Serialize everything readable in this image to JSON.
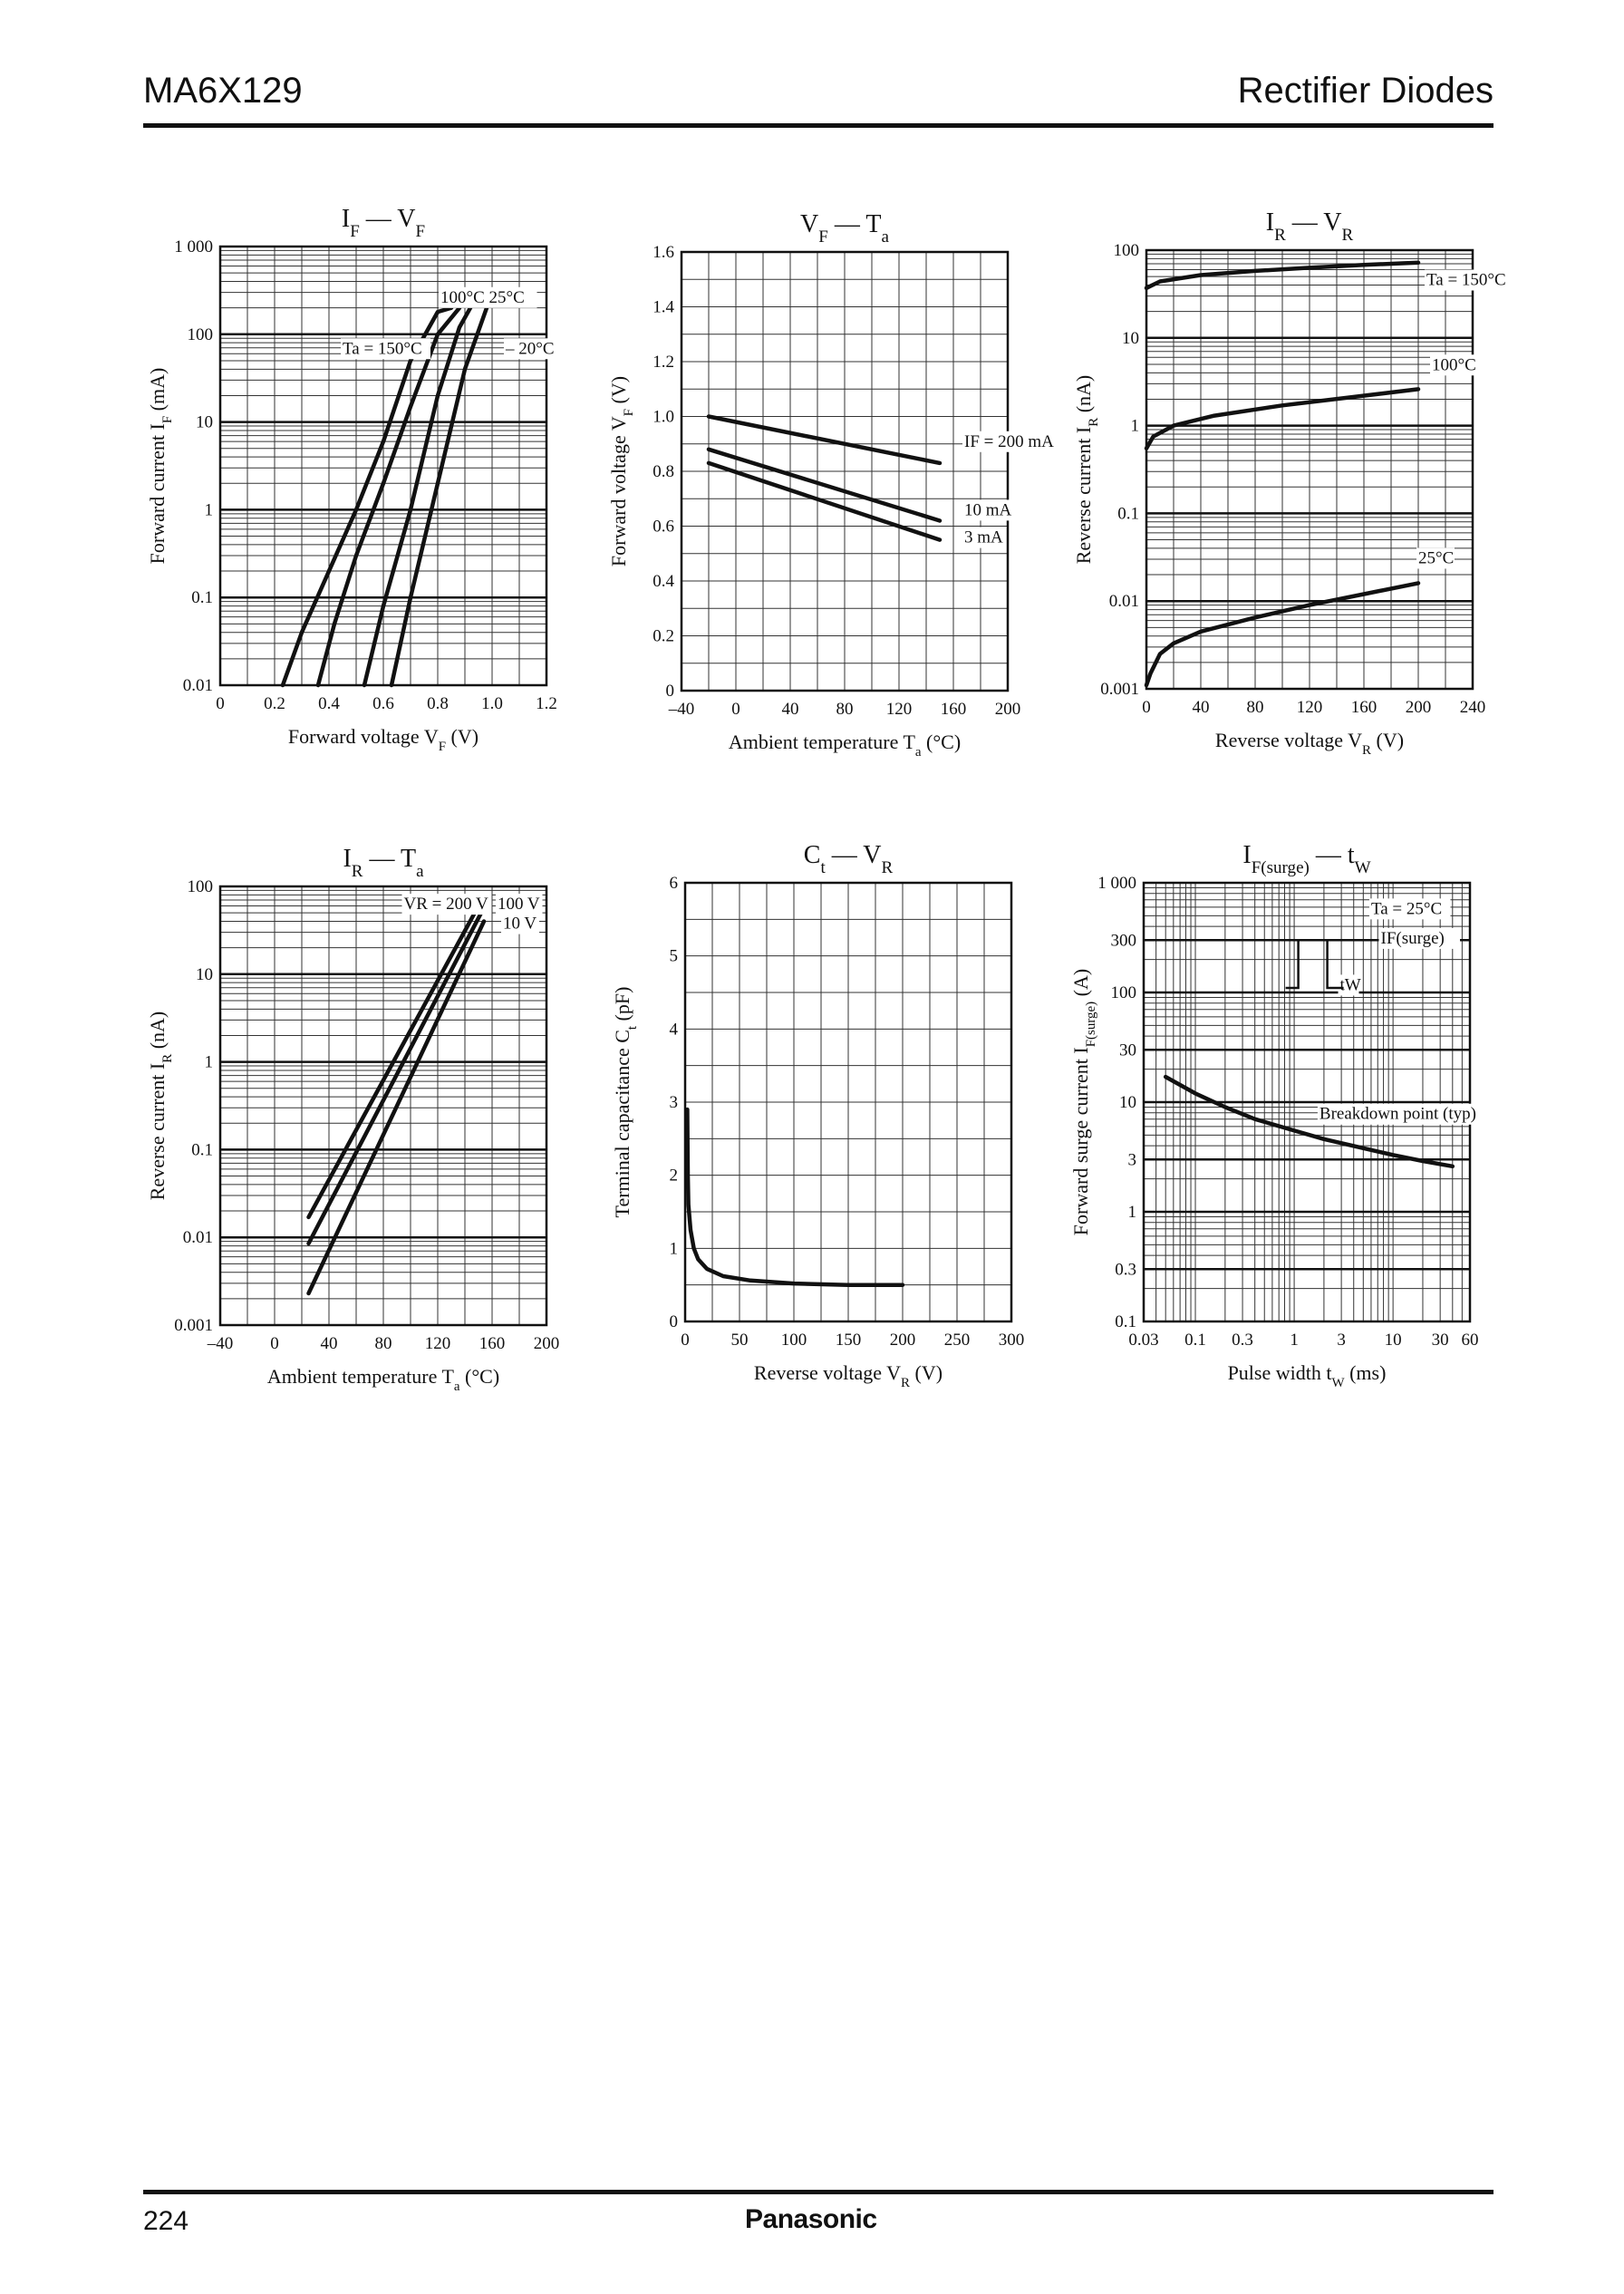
{
  "header": {
    "part_number": "MA6X129",
    "category": "Rectifier Diodes"
  },
  "footer": {
    "page_number": "224",
    "brand": "Panasonic"
  },
  "chart_data": [
    {
      "id": "if_vf",
      "type": "line",
      "title": {
        "main": "I",
        "main_sub": "F",
        "dash": " — ",
        "var": "V",
        "var_sub": "F"
      },
      "xlabel": {
        "text": "Forward voltage",
        "sym": "V",
        "sub": "F",
        "unit": "(V)"
      },
      "ylabel": {
        "text": "Forward current",
        "sym": "I",
        "sub": "F",
        "unit": "(mA)"
      },
      "xscale": "linear",
      "yscale": "log",
      "xlim": [
        0,
        1.2
      ],
      "ylim": [
        0.01,
        1000
      ],
      "xticks": [
        0,
        0.2,
        0.4,
        0.6,
        0.8,
        1.0,
        1.2
      ],
      "xticklabels": [
        "0",
        "0.2",
        "0.4",
        "0.6",
        "0.8",
        "1.0",
        "1.2"
      ],
      "yticks": [
        0.01,
        0.1,
        1,
        10,
        100,
        1000
      ],
      "yticklabels": [
        "0.01",
        "0.1",
        "1",
        "10",
        "100",
        "1 000"
      ],
      "xgrid": [
        0.1,
        0.2,
        0.3,
        0.4,
        0.5,
        0.6,
        0.7,
        0.8,
        0.9,
        1.0,
        1.1
      ],
      "ygrid": "log",
      "series": [
        {
          "points": [
            [
              0.23,
              0.01
            ],
            [
              0.3,
              0.04
            ],
            [
              0.4,
              0.2
            ],
            [
              0.5,
              1
            ],
            [
              0.6,
              6
            ],
            [
              0.7,
              50
            ],
            [
              0.8,
              180
            ],
            [
              0.85,
              200
            ]
          ]
        },
        {
          "points": [
            [
              0.36,
              0.01
            ],
            [
              0.42,
              0.05
            ],
            [
              0.5,
              0.3
            ],
            [
              0.6,
              2
            ],
            [
              0.7,
              15
            ],
            [
              0.8,
              100
            ],
            [
              0.88,
              200
            ]
          ]
        },
        {
          "points": [
            [
              0.53,
              0.01
            ],
            [
              0.6,
              0.08
            ],
            [
              0.7,
              1
            ],
            [
              0.8,
              20
            ],
            [
              0.88,
              120
            ],
            [
              0.92,
              200
            ]
          ]
        },
        {
          "points": [
            [
              0.63,
              0.01
            ],
            [
              0.7,
              0.1
            ],
            [
              0.8,
              2
            ],
            [
              0.9,
              40
            ],
            [
              0.98,
              200
            ]
          ]
        }
      ],
      "annotations": [
        {
          "text": "100°C  25°C",
          "x": 0.81,
          "y": 230
        },
        {
          "text": "Ta = 150°C",
          "x": 0.45,
          "y": 60
        },
        {
          "text": "– 20°C",
          "x": 1.05,
          "y": 60
        }
      ]
    },
    {
      "id": "vf_ta",
      "type": "line",
      "title": {
        "main": "V",
        "main_sub": "F",
        "dash": " — ",
        "var": "T",
        "var_sub": "a"
      },
      "xlabel": {
        "text": "Ambient temperature",
        "sym": "T",
        "sub": "a",
        "unit": "(°C)"
      },
      "ylabel": {
        "text": "Forward voltage",
        "sym": "V",
        "sub": "F",
        "unit": "(V)"
      },
      "xscale": "linear",
      "yscale": "linear",
      "xlim": [
        -40,
        200
      ],
      "ylim": [
        0,
        1.6
      ],
      "xticks": [
        -40,
        0,
        40,
        80,
        120,
        160,
        200
      ],
      "xticklabels": [
        "–40",
        "0",
        "40",
        "80",
        "120",
        "160",
        "200"
      ],
      "yticks": [
        0,
        0.2,
        0.4,
        0.6,
        0.8,
        1.0,
        1.2,
        1.4,
        1.6
      ],
      "yticklabels": [
        "0",
        "0.2",
        "0.4",
        "0.6",
        "0.8",
        "1.0",
        "1.2",
        "1.4",
        "1.6"
      ],
      "xgrid": [
        -20,
        0,
        20,
        40,
        60,
        80,
        100,
        120,
        140,
        160,
        180
      ],
      "ygrid": [
        0.1,
        0.2,
        0.3,
        0.4,
        0.5,
        0.6,
        0.7,
        0.8,
        0.9,
        1.0,
        1.1,
        1.2,
        1.3,
        1.4,
        1.5
      ],
      "series": [
        {
          "name": "IF = 200 mA",
          "points": [
            [
              -20,
              1.0
            ],
            [
              150,
              0.83
            ]
          ]
        },
        {
          "name": "10 mA",
          "points": [
            [
              -20,
              0.88
            ],
            [
              150,
              0.62
            ]
          ]
        },
        {
          "name": "3 mA",
          "points": [
            [
              -20,
              0.83
            ],
            [
              150,
              0.55
            ]
          ]
        }
      ],
      "annotations": [
        {
          "text": "IF = 200 mA",
          "x": 168,
          "y": 0.89
        },
        {
          "text": "10 mA",
          "x": 168,
          "y": 0.64
        },
        {
          "text": "3 mA",
          "x": 168,
          "y": 0.54
        }
      ]
    },
    {
      "id": "ir_vr",
      "type": "line",
      "title": {
        "main": "I",
        "main_sub": "R",
        "dash": " — ",
        "var": "V",
        "var_sub": "R"
      },
      "xlabel": {
        "text": "Reverse voltage",
        "sym": "V",
        "sub": "R",
        "unit": "(V)"
      },
      "ylabel": {
        "text": "Reverse current",
        "sym": "I",
        "sub": "R",
        "unit": "(nA)"
      },
      "xscale": "linear",
      "yscale": "log",
      "xlim": [
        0,
        240
      ],
      "ylim": [
        0.001,
        100
      ],
      "xticks": [
        0,
        40,
        80,
        120,
        160,
        200,
        240
      ],
      "xticklabels": [
        "0",
        "40",
        "80",
        "120",
        "160",
        "200",
        "240"
      ],
      "yticks": [
        0.001,
        0.01,
        0.1,
        1,
        10,
        100
      ],
      "yticklabels": [
        "0.001",
        "0.01",
        "0.1",
        "1",
        "10",
        "100"
      ],
      "xgrid": [
        20,
        40,
        60,
        80,
        100,
        120,
        140,
        160,
        180,
        200,
        220
      ],
      "ygrid": "log",
      "series": [
        {
          "name": "Ta = 150°C",
          "points": [
            [
              0,
              37
            ],
            [
              10,
              44
            ],
            [
              40,
              52
            ],
            [
              80,
              58
            ],
            [
              120,
              63
            ],
            [
              160,
              68
            ],
            [
              200,
              72
            ]
          ]
        },
        {
          "name": "100°C",
          "points": [
            [
              0,
              0.55
            ],
            [
              5,
              0.75
            ],
            [
              20,
              1.0
            ],
            [
              50,
              1.3
            ],
            [
              100,
              1.7
            ],
            [
              150,
              2.1
            ],
            [
              200,
              2.6
            ]
          ]
        },
        {
          "name": "25°C",
          "points": [
            [
              0,
              0.0011
            ],
            [
              3,
              0.0015
            ],
            [
              10,
              0.0025
            ],
            [
              20,
              0.0033
            ],
            [
              40,
              0.0045
            ],
            [
              80,
              0.0065
            ],
            [
              120,
              0.009
            ],
            [
              160,
              0.012
            ],
            [
              200,
              0.016
            ]
          ]
        }
      ],
      "annotations": [
        {
          "text": "Ta = 150°C",
          "x": 206,
          "y": 40
        },
        {
          "text": "100°C",
          "x": 210,
          "y": 4.3
        },
        {
          "text": "25°C",
          "x": 200,
          "y": 0.027
        }
      ]
    },
    {
      "id": "ir_ta",
      "type": "line",
      "title": {
        "main": "I",
        "main_sub": "R",
        "dash": " — ",
        "var": "T",
        "var_sub": "a"
      },
      "xlabel": {
        "text": "Ambient temperature",
        "sym": "T",
        "sub": "a",
        "unit": "(°C)"
      },
      "ylabel": {
        "text": "Reverse current",
        "sym": "I",
        "sub": "R",
        "unit": "(nA)"
      },
      "xscale": "linear",
      "yscale": "log",
      "xlim": [
        -40,
        200
      ],
      "ylim": [
        0.001,
        100
      ],
      "xticks": [
        -40,
        0,
        40,
        80,
        120,
        160,
        200
      ],
      "xticklabels": [
        "–40",
        "0",
        "40",
        "80",
        "120",
        "160",
        "200"
      ],
      "yticks": [
        0.001,
        0.01,
        0.1,
        1,
        10,
        100
      ],
      "yticklabels": [
        "0.001",
        "0.01",
        "0.1",
        "1",
        "10",
        "100"
      ],
      "xgrid": [
        -20,
        0,
        20,
        40,
        60,
        80,
        100,
        120,
        140,
        160,
        180
      ],
      "ygrid": "log",
      "series": [
        {
          "name": "VR = 200 V",
          "points": [
            [
              25,
              0.017
            ],
            [
              150,
              60
            ]
          ]
        },
        {
          "name": "100 V",
          "points": [
            [
              25,
              0.0085
            ],
            [
              152,
              50
            ]
          ]
        },
        {
          "name": "10 V",
          "points": [
            [
              25,
              0.0023
            ],
            [
              154,
              40
            ]
          ]
        }
      ],
      "annotations": [
        {
          "text": "VR = 200 V",
          "x": 95,
          "y": 55
        },
        {
          "text": "100 V",
          "x": 164,
          "y": 55
        },
        {
          "text": "10 V",
          "x": 168,
          "y": 33
        }
      ]
    },
    {
      "id": "ct_vr",
      "type": "line",
      "title": {
        "main": "C",
        "main_sub": "t",
        "dash": " — ",
        "var": "V",
        "var_sub": "R"
      },
      "xlabel": {
        "text": "Reverse voltage",
        "sym": "V",
        "sub": "R",
        "unit": "(V)"
      },
      "ylabel": {
        "text": "Terminal capacitance",
        "sym": "C",
        "sub": "t",
        "unit": "(pF)"
      },
      "xscale": "linear",
      "yscale": "linear",
      "xlim": [
        0,
        300
      ],
      "ylim": [
        0,
        6
      ],
      "xticks": [
        0,
        50,
        100,
        150,
        200,
        250,
        300
      ],
      "xticklabels": [
        "0",
        "50",
        "100",
        "150",
        "200",
        "250",
        "300"
      ],
      "yticks": [
        0,
        1,
        2,
        3,
        4,
        5,
        6
      ],
      "yticklabels": [
        "0",
        "1",
        "2",
        "3",
        "4",
        "5",
        "6"
      ],
      "xgrid": [
        25,
        50,
        75,
        100,
        125,
        150,
        175,
        200,
        225,
        250,
        275
      ],
      "ygrid": [
        0.5,
        1,
        1.5,
        2,
        2.5,
        3,
        3.5,
        4,
        4.5,
        5,
        5.5
      ],
      "series": [
        {
          "points": [
            [
              2,
              2.9
            ],
            [
              2.5,
              2.0
            ],
            [
              3,
              1.6
            ],
            [
              5,
              1.25
            ],
            [
              8,
              1.0
            ],
            [
              12,
              0.85
            ],
            [
              20,
              0.72
            ],
            [
              35,
              0.62
            ],
            [
              60,
              0.56
            ],
            [
              100,
              0.52
            ],
            [
              150,
              0.5
            ],
            [
              200,
              0.5
            ]
          ]
        }
      ],
      "annotations": []
    },
    {
      "id": "ifs_tw",
      "type": "line",
      "title": {
        "main": "I",
        "main_sub": "F(surge)",
        "dash": " — ",
        "var": "t",
        "var_sub": "W"
      },
      "xlabel": {
        "text": "Pulse width",
        "sym": "t",
        "sub": "W",
        "unit": "(ms)"
      },
      "ylabel": {
        "text": "Forward surge current",
        "sym": "I",
        "sub": "F(surge)",
        "unit": "(A)"
      },
      "xscale": "log",
      "yscale": "log",
      "xlim": [
        0.03,
        60
      ],
      "ylim": [
        0.1,
        1000
      ],
      "xticks": [
        0.03,
        0.1,
        0.3,
        1,
        3,
        10,
        30,
        60
      ],
      "xticklabels": [
        "0.03",
        "0.1",
        "0.3",
        "1",
        "3",
        "10",
        "30",
        "60"
      ],
      "yticks": [
        0.1,
        0.3,
        1,
        3,
        10,
        30,
        100,
        300,
        1000
      ],
      "yticklabels": [
        "0.1",
        "0.3",
        "1",
        "3",
        "10",
        "30",
        "100",
        "300",
        "1 000"
      ],
      "xgrid": "log",
      "ygrid": "log",
      "series": [
        {
          "points": [
            [
              0.05,
              17
            ],
            [
              0.1,
              12
            ],
            [
              0.2,
              9
            ],
            [
              0.4,
              7
            ],
            [
              1,
              5.5
            ],
            [
              2,
              4.6
            ],
            [
              5,
              3.8
            ],
            [
              10,
              3.3
            ],
            [
              20,
              2.9
            ],
            [
              40,
              2.6
            ]
          ]
        }
      ],
      "annotations": [
        {
          "text": "Breakdown point (typ)",
          "x": 1.8,
          "y": 7
        },
        {
          "text": "Ta = 25°C",
          "x": 6,
          "y": 520
        },
        {
          "text": "IF(surge)",
          "x": 7.5,
          "y": 280
        },
        {
          "text": "tW",
          "x": 2.9,
          "y": 105
        }
      ]
    }
  ]
}
